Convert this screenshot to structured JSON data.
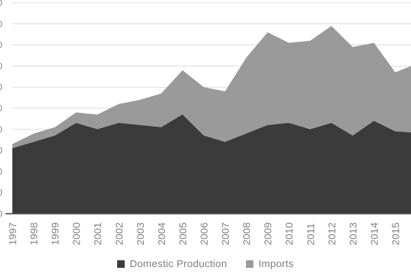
{
  "chart_data": {
    "type": "area",
    "stacked": true,
    "title": "",
    "xlabel": "",
    "ylabel": "",
    "categories": [
      "1997",
      "1998",
      "1999",
      "2000",
      "2001",
      "2002",
      "2003",
      "2004",
      "2005",
      "2006",
      "2007",
      "2008",
      "2009",
      "2010",
      "2011",
      "2012",
      "2013",
      "2014",
      "2015"
    ],
    "series": [
      {
        "name": "Domestic Production",
        "color": "#3b3b3b",
        "values": [
          31,
          34,
          37,
          43,
          40,
          43,
          42,
          41,
          47,
          37,
          34,
          38,
          42,
          43,
          40,
          43,
          37,
          44,
          39
        ]
      },
      {
        "name": "Imports",
        "color": "#9a9a9a",
        "values": [
          2,
          4,
          4,
          5,
          7,
          9,
          12,
          16,
          21,
          23,
          24,
          36,
          44,
          38,
          42,
          46,
          42,
          37,
          28
        ]
      }
    ],
    "right_edge_continuation": {
      "domestic_production": 38.5,
      "imports": 31.5
    },
    "x_axis": {
      "labels_rotated_degrees": 90,
      "label_color": "#808080"
    },
    "y_axis": {
      "min": 0,
      "max": 100,
      "step": 10,
      "labels_cropped_fragment": "0",
      "labels_cropped": true
    },
    "grid": true,
    "gridline_color": "#d9d9d9",
    "axis_line_color": "#4d4d4d",
    "legend_position": "bottom"
  },
  "legend": {
    "items": [
      {
        "label": "Domestic Production",
        "swatch_color": "#3b3b3b"
      },
      {
        "label": "Imports",
        "swatch_color": "#9a9a9a"
      }
    ]
  }
}
